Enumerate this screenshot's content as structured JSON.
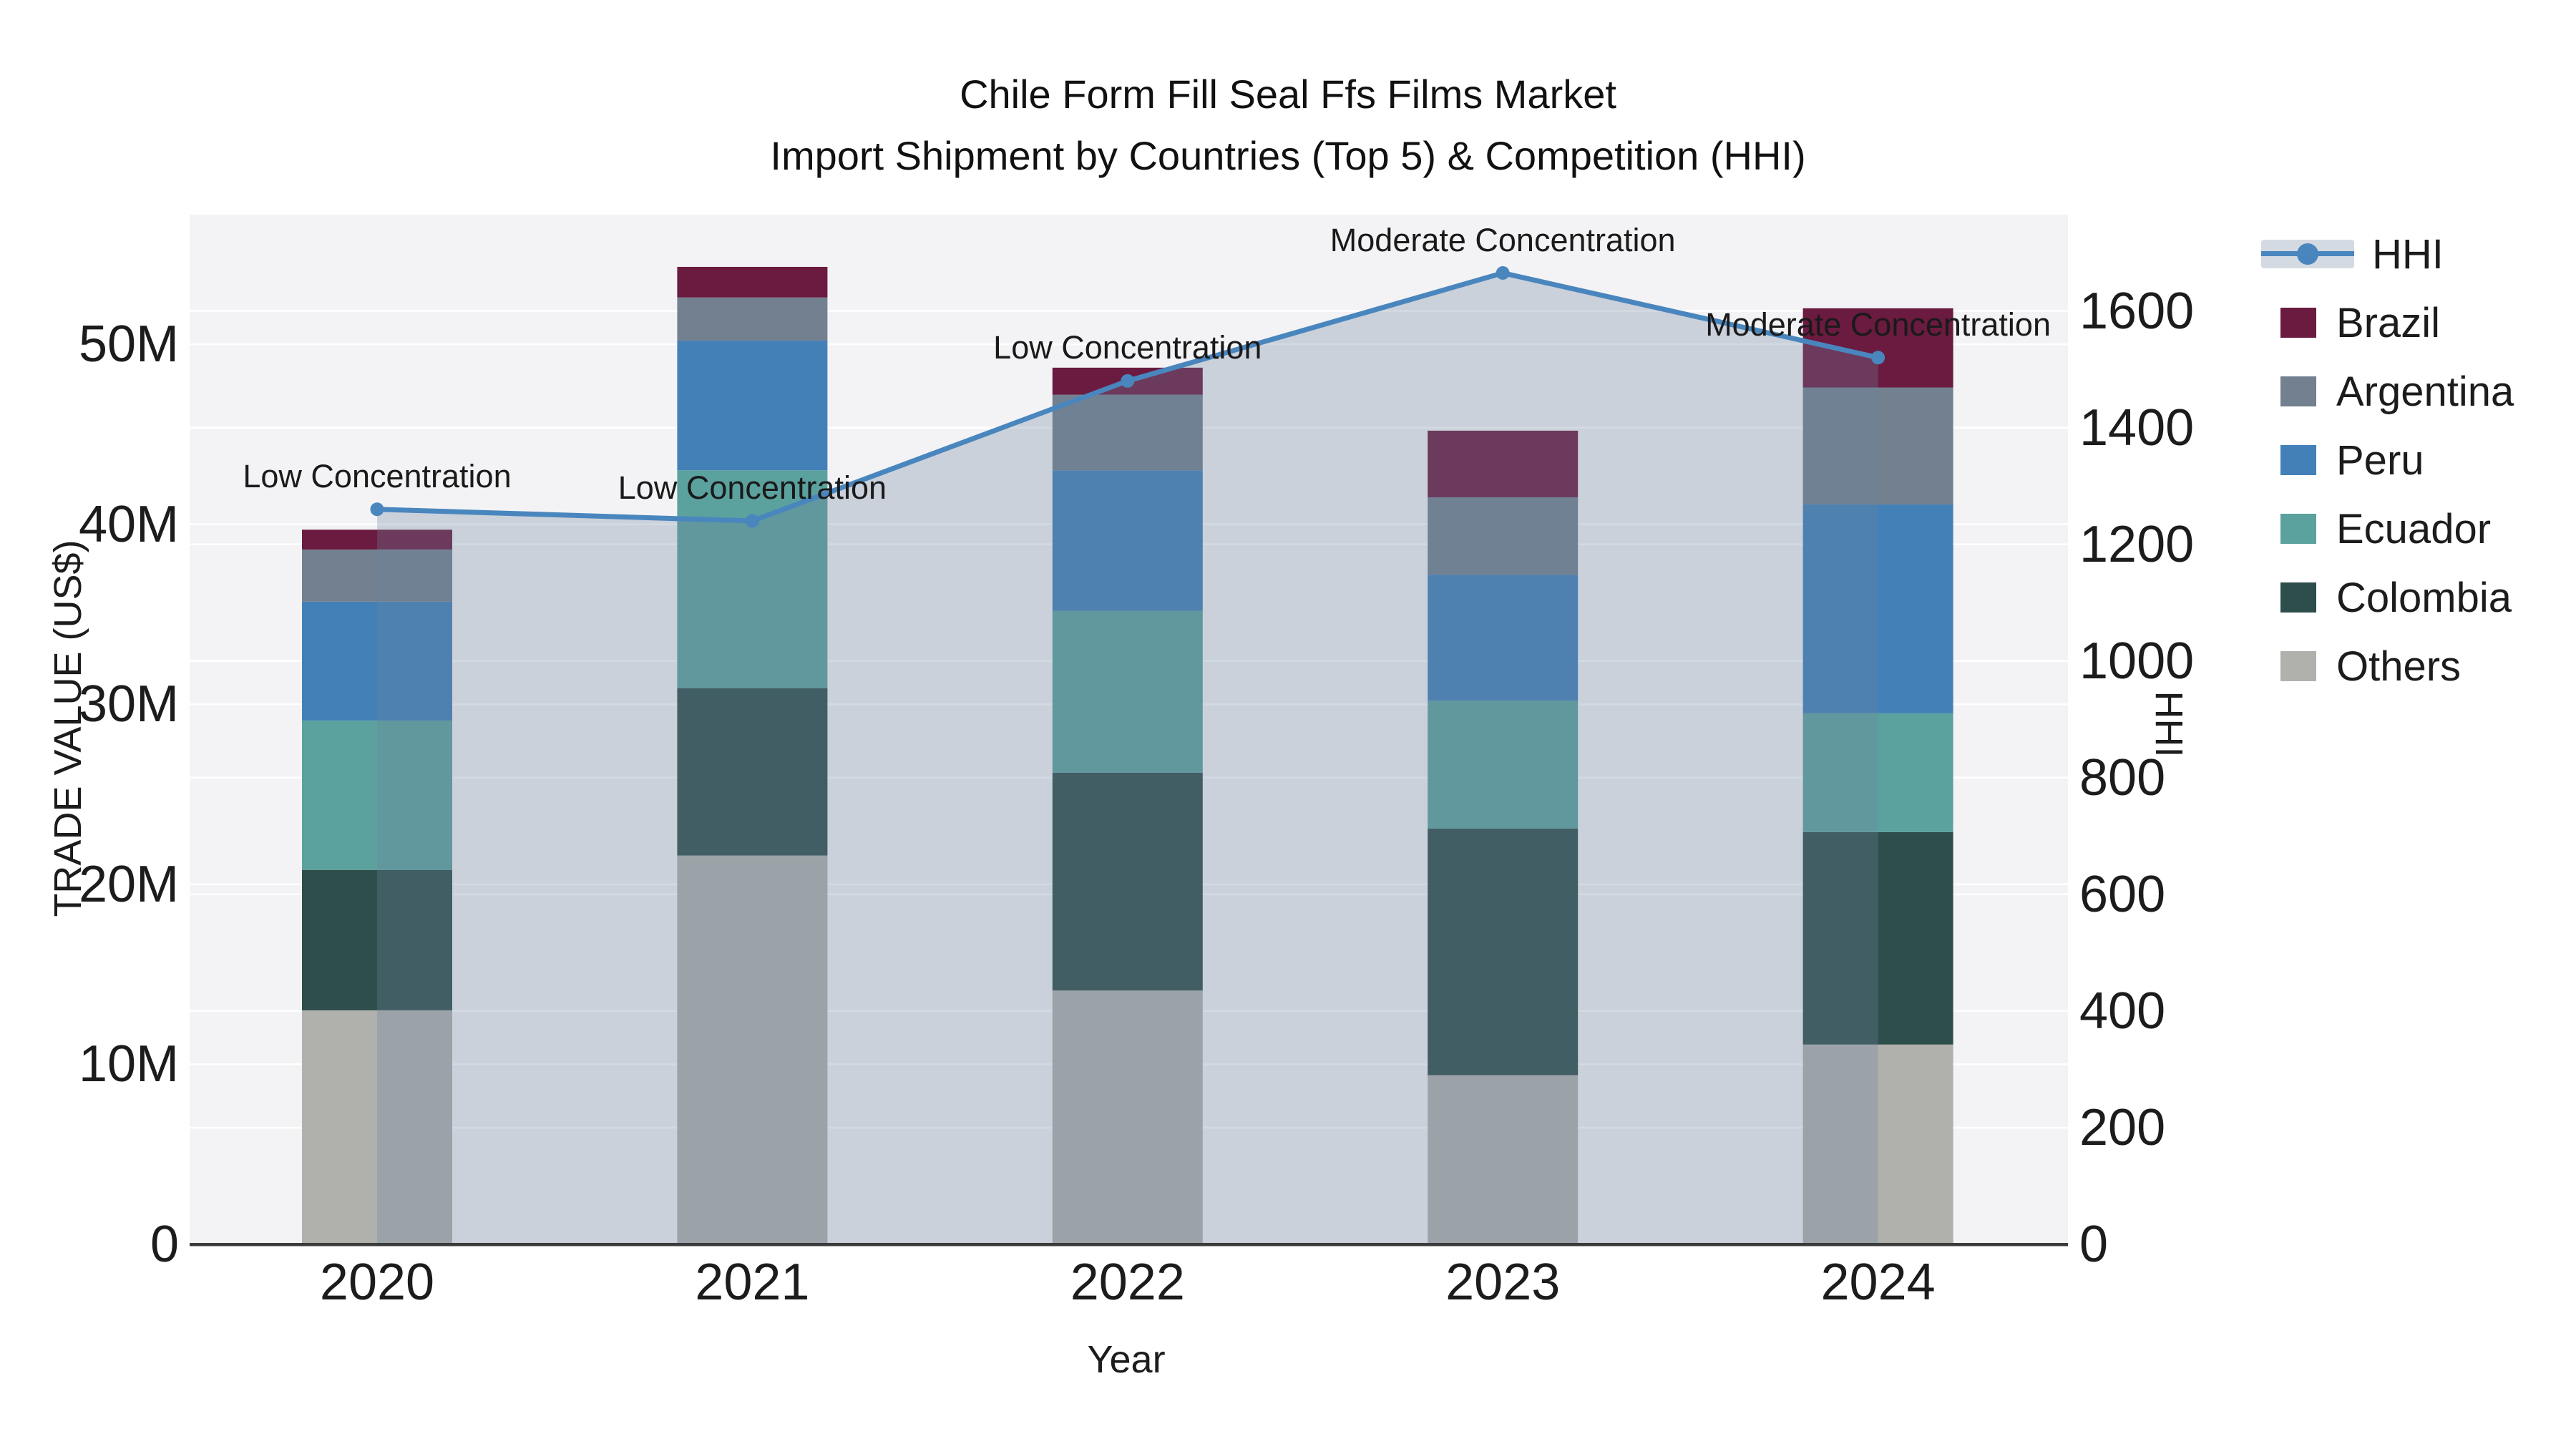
{
  "title": {
    "line1": "Chile Form Fill Seal Ffs Films Market",
    "line2": "Import Shipment by Countries (Top 5) & Competition (HHI)"
  },
  "axes": {
    "y_left": {
      "title": "TRADE VALUE (US$)",
      "ticks": [
        {
          "label": "0",
          "value": 0
        },
        {
          "label": "10M",
          "value": 10
        },
        {
          "label": "20M",
          "value": 20
        },
        {
          "label": "30M",
          "value": 30
        },
        {
          "label": "40M",
          "value": 40
        },
        {
          "label": "50M",
          "value": 50
        }
      ]
    },
    "y_right": {
      "title": "HHI",
      "ticks": [
        {
          "label": "0",
          "value": 0
        },
        {
          "label": "200",
          "value": 200
        },
        {
          "label": "400",
          "value": 400
        },
        {
          "label": "600",
          "value": 600
        },
        {
          "label": "800",
          "value": 800
        },
        {
          "label": "1000",
          "value": 1000
        },
        {
          "label": "1200",
          "value": 1200
        },
        {
          "label": "1400",
          "value": 1400
        },
        {
          "label": "1600",
          "value": 1600
        }
      ]
    },
    "x": {
      "title": "Year"
    }
  },
  "legend": {
    "items": [
      {
        "label": "HHI",
        "type": "line",
        "color": "#4A86BE"
      },
      {
        "label": "Brazil",
        "type": "swatch",
        "color": "#6B1A40"
      },
      {
        "label": "Argentina",
        "type": "swatch",
        "color": "#72808F"
      },
      {
        "label": "Peru",
        "type": "swatch",
        "color": "#4380B8"
      },
      {
        "label": "Ecuador",
        "type": "swatch",
        "color": "#5BA19E"
      },
      {
        "label": "Colombia",
        "type": "swatch",
        "color": "#2E4E4B"
      },
      {
        "label": "Others",
        "type": "swatch",
        "color": "#B0B0AD"
      }
    ]
  },
  "annotations": [
    "Low Concentration",
    "Low Concentration",
    "Low Concentration",
    "Moderate Concentration",
    "Moderate Concentration"
  ],
  "chart_data": {
    "type": "combo_stacked_bar_line",
    "title": "Chile Form Fill Seal Ffs Films Market — Import Shipment by Countries (Top 5) & Competition (HHI)",
    "categories": [
      "2020",
      "2021",
      "2022",
      "2023",
      "2024"
    ],
    "bar_unit": "US$ millions (trade value)",
    "series": [
      {
        "name": "Others",
        "color": "#B0B0AD",
        "values": [
          13.0,
          21.6,
          14.1,
          9.4,
          11.1
        ]
      },
      {
        "name": "Colombia",
        "color": "#2E4E4B",
        "values": [
          7.8,
          9.3,
          12.1,
          13.7,
          11.8
        ]
      },
      {
        "name": "Ecuador",
        "color": "#5BA19E",
        "values": [
          8.3,
          12.1,
          9.0,
          7.1,
          6.6
        ]
      },
      {
        "name": "Peru",
        "color": "#4380B8",
        "values": [
          6.6,
          7.2,
          7.8,
          7.0,
          11.6
        ]
      },
      {
        "name": "Argentina",
        "color": "#72808F",
        "values": [
          2.9,
          2.4,
          4.2,
          4.3,
          6.5
        ]
      },
      {
        "name": "Brazil",
        "color": "#6B1A40",
        "values": [
          1.1,
          1.7,
          1.5,
          3.7,
          4.4
        ]
      }
    ],
    "bar_totals": [
      39.7,
      54.3,
      48.7,
      45.2,
      52.0
    ],
    "line_series": {
      "name": "HHI",
      "axis": "right",
      "color": "#4A86BE",
      "area_fill_color": "rgba(109,131,159,0.30)",
      "values": [
        1260,
        1240,
        1480,
        1665,
        1520
      ]
    },
    "xlabel": "Year",
    "ylabel_left": "TRADE VALUE (US$)",
    "ylabel_right": "HHI",
    "y_left_range": [
      0,
      57.2
    ],
    "y_right_range": [
      0,
      1765
    ],
    "grid": true,
    "legend_position": "right"
  },
  "colors": {
    "plot_bg": "#F3F3F5",
    "grid": "#FFFFFF",
    "axis_line": "#3B3B3B",
    "text": "#1C1C1C",
    "hhi_legend_band": "#D4DAE2"
  }
}
